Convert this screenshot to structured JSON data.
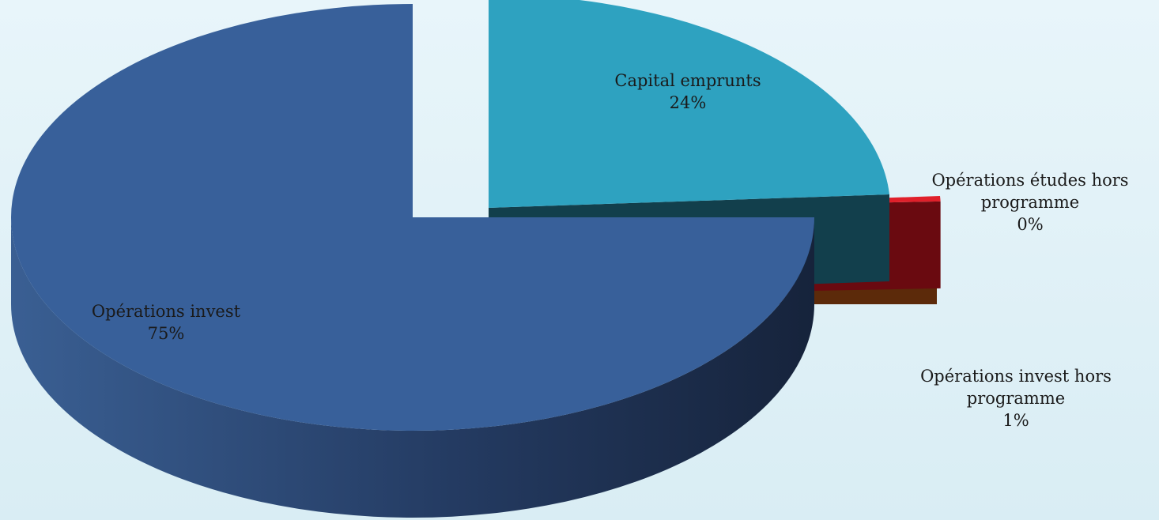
{
  "chart_data": {
    "type": "pie",
    "style": "3d-exploded",
    "title": "",
    "slices": [
      {
        "label": "Opérations invest",
        "percent_label": "75%",
        "value": 75,
        "top_color": "#38609a",
        "side_color": "#22375a",
        "exploded": false
      },
      {
        "label": "Capital emprunts",
        "percent_label": "24%",
        "value": 24,
        "top_color": "#2ea2c0",
        "side_color": "#123f4c",
        "exploded": true
      },
      {
        "label": "Opérations études hors programme",
        "percent_label": "0%",
        "value": 0.4,
        "top_color": "#e0202a",
        "side_color": "#6a0a10",
        "exploded": true
      },
      {
        "label": "Opérations invest hors programme",
        "percent_label": "1%",
        "value": 0.6,
        "top_color": "#f07820",
        "side_color": "#5c2a0a",
        "exploded": true
      }
    ]
  }
}
